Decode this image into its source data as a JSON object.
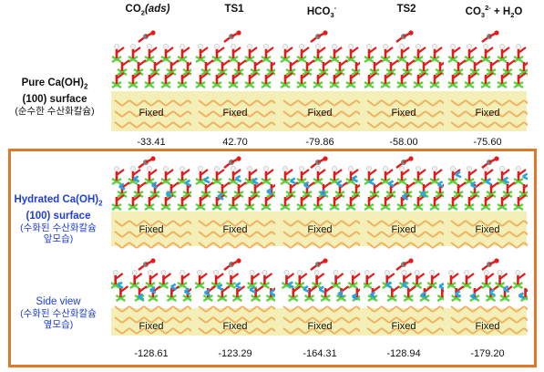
{
  "columns": [
    {
      "name": "CO2(ads)",
      "base": "CO",
      "sub": "2",
      "ital": "(ads)"
    },
    {
      "name": "TS1"
    },
    {
      "name": "HCO3-",
      "base": "HCO",
      "sub": "3",
      "sup": "-"
    },
    {
      "name": "TS2"
    },
    {
      "name": "CO32- + H2O",
      "base": "CO",
      "sub": "3",
      "sup": "2-",
      "rest": " + H",
      "sub2": "2",
      "rest2": "O"
    }
  ],
  "rows": [
    {
      "label_line1": "Pure Ca(OH)",
      "label_sub": "2",
      "label_line2": "(100) surface",
      "korean": "(순수한 수산화칼슘)",
      "fixed_label": "Fixed",
      "energies": [
        "-33.41",
        "42.70",
        "-79.86",
        "-58.00",
        "-75.60"
      ]
    },
    {
      "label_line1": "Hydrated Ca(OH)",
      "label_sub": "2",
      "label_line2": "(100) surface",
      "korean": "(수화된 수산화칼슘 앞모습)",
      "fixed_label": "Fixed"
    },
    {
      "label_line1": "Side view",
      "korean": "(수화된 수산화칼슘 옆모습)",
      "fixed_label": "Fixed",
      "energies": [
        "-128.61",
        "-123.29",
        "-164.31",
        "-128.94",
        "-179.20"
      ]
    }
  ],
  "colors": {
    "frame": "#e0782a",
    "fixed_band": "#f3efb6",
    "oxygen": "#e21b1b",
    "calcium": "#59d13a",
    "hydrogen": "#f2f2f2",
    "carbon": "#808080",
    "water": "#2aa3e0",
    "bulk": "#f0b060",
    "blue_text": "#1f3fd6"
  }
}
